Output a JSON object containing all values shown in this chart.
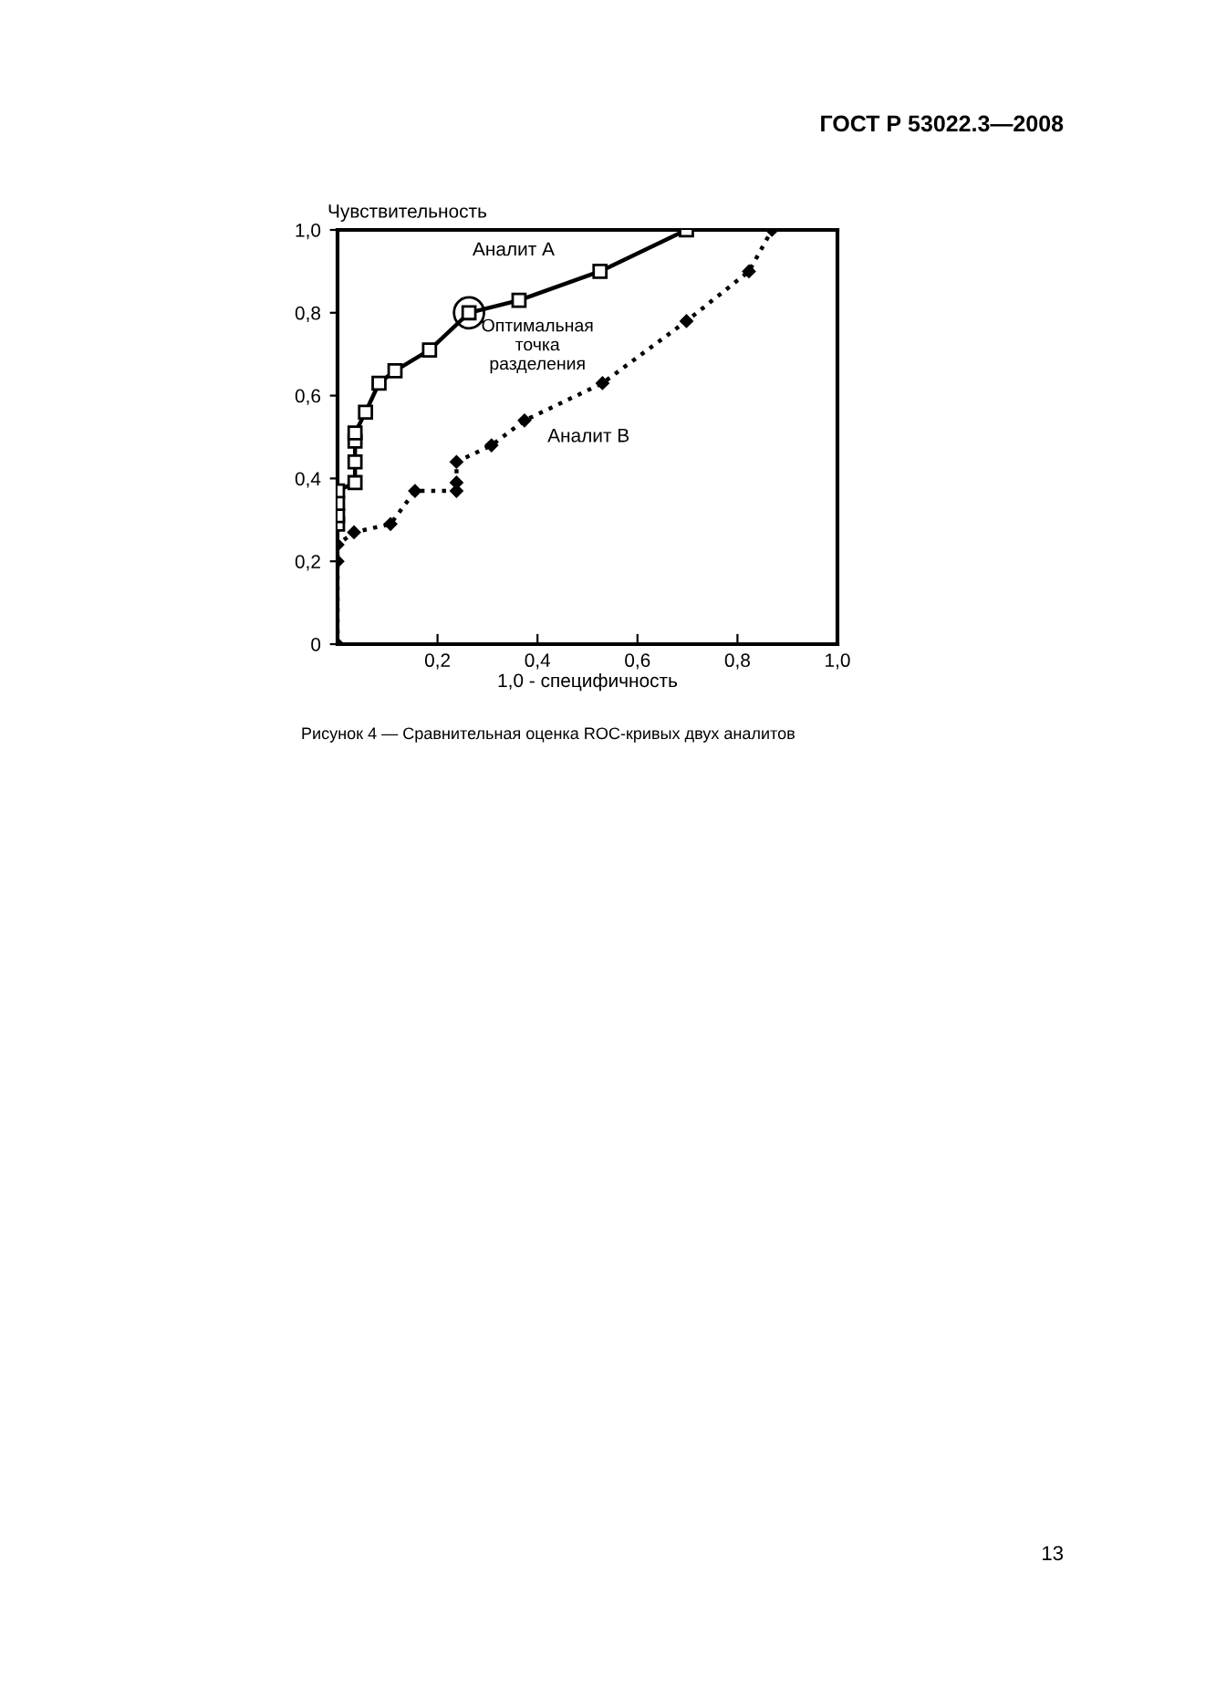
{
  "chart_data": {
    "type": "line",
    "xlabel": "1,0 - специфичность",
    "ylabel": "Чувствительность",
    "series": [
      {
        "name": "Аналит А",
        "color": "#000000",
        "marker": "square",
        "line_style": "solid",
        "x": [
          0,
          0,
          0,
          0,
          0.035,
          0.035,
          0.035,
          0.035,
          0.056,
          0.083,
          0.115,
          0.184,
          0.263,
          0.363,
          0.525,
          0.698
        ],
        "values": [
          0.29,
          0.31,
          0.34,
          0.37,
          0.39,
          0.44,
          0.49,
          0.51,
          0.56,
          0.63,
          0.66,
          0.71,
          0.8,
          0.83,
          0.9,
          1.0
        ]
      },
      {
        "name": "Аналит В",
        "color": "#000000",
        "marker": "diamond",
        "line_style": "dotted",
        "x": [
          0,
          0,
          0,
          0.033,
          0.106,
          0.155,
          0.238,
          0.238,
          0.238,
          0.308,
          0.374,
          0.53,
          0.698,
          0.823,
          0.869
        ],
        "values": [
          0,
          0.2,
          0.24,
          0.27,
          0.29,
          0.37,
          0.37,
          0.39,
          0.44,
          0.48,
          0.54,
          0.63,
          0.78,
          0.9,
          1.0
        ]
      }
    ],
    "xlim": [
      0,
      1
    ],
    "ylim": [
      0,
      1
    ],
    "xticks": [
      {
        "value": 0,
        "label": null
      },
      {
        "value": 0.2,
        "label": "0,2"
      },
      {
        "value": 0.4,
        "label": "0,4"
      },
      {
        "value": 0.6,
        "label": "0,6"
      },
      {
        "value": 0.8,
        "label": "0,8"
      },
      {
        "value": 1.0,
        "label": "1,0"
      }
    ],
    "yticks": [
      {
        "value": 0,
        "label": "0"
      },
      {
        "value": 0.2,
        "label": "0,2"
      },
      {
        "value": 0.4,
        "label": "0,4"
      },
      {
        "value": 0.6,
        "label": "0,6"
      },
      {
        "value": 0.8,
        "label": "0,8"
      },
      {
        "value": 1.0,
        "label": "1,0"
      }
    ],
    "grid": false,
    "legend": false,
    "annotations": [
      "ГОСТ Р 53022.3—2008",
      {
        "text": "Оптимальная\nточка\nразделения",
        "x": 0.263,
        "y": 0.8
      },
      "Рисунок 4 — Сравнительная оценка ROC-кривых двух аналитов",
      "13"
    ]
  }
}
